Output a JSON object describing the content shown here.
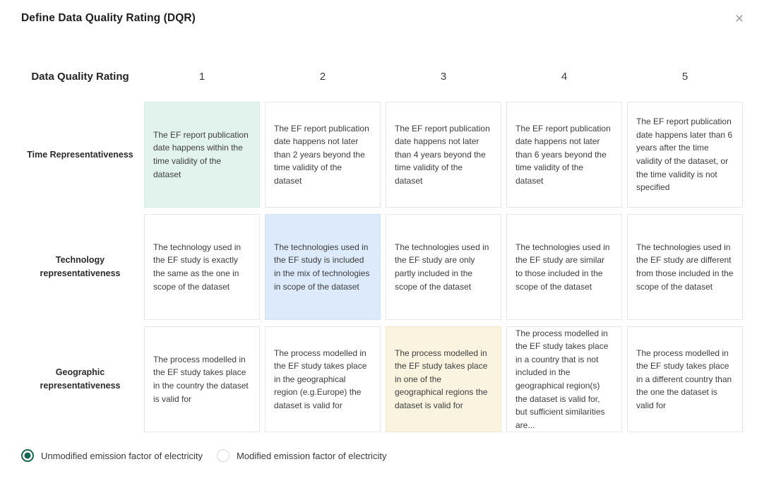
{
  "dialog": {
    "title": "Define Data Quality Rating (DQR)",
    "close_icon": "×"
  },
  "table": {
    "corner_header": "Data Quality Rating",
    "column_headers": [
      "1",
      "2",
      "3",
      "4",
      "5"
    ],
    "rows": [
      {
        "label": "Time Representativeness",
        "cells": [
          {
            "text": "The EF report publication date happens within the time validity of the dataset",
            "highlight": "green"
          },
          {
            "text": "The EF report publication date happens not later than 2 years beyond the time validity of the dataset",
            "highlight": "none"
          },
          {
            "text": "The EF report publication date happens not later than 4 years beyond the time validity of the dataset",
            "highlight": "none"
          },
          {
            "text": "The EF report publication date happens not later than 6 years beyond the time validity of the dataset",
            "highlight": "none"
          },
          {
            "text": "The EF report publication date happens later than 6 years after the time validity of the dataset, or the time validity is not specified",
            "highlight": "none"
          }
        ]
      },
      {
        "label": "Technology representativeness",
        "cells": [
          {
            "text": "The technology used in the EF study is exactly the same as the one in scope of the dataset",
            "highlight": "none"
          },
          {
            "text": "The technologies used in the EF study is included in the mix of technologies in scope of the dataset",
            "highlight": "blue"
          },
          {
            "text": "The technologies used in the EF study are only partly included in the scope of the dataset",
            "highlight": "none"
          },
          {
            "text": "The technologies used in the EF study are similar to those included in the scope of the dataset",
            "highlight": "none"
          },
          {
            "text": "The technologies used in the EF study are different from those included in the scope of the dataset",
            "highlight": "none"
          }
        ]
      },
      {
        "label": "Geographic representativeness",
        "cells": [
          {
            "text": "The process modelled in the EF study takes place in the country the dataset is valid for",
            "highlight": "none"
          },
          {
            "text": "The process modelled in the EF study takes place in the geographical region (e.g.Europe) the dataset is valid for",
            "highlight": "none"
          },
          {
            "text": "The process modelled in the EF study takes place in one of the geographical regions the dataset is valid for",
            "highlight": "yellow"
          },
          {
            "text": "The process modelled in the EF study takes place in a country that is not included in the geographical region(s) the dataset is valid for, but sufficient similarities are...",
            "highlight": "none"
          },
          {
            "text": "The process modelled in the EF study takes place in a different country than the one the dataset is valid for",
            "highlight": "none"
          }
        ]
      }
    ]
  },
  "radio_group": {
    "options": [
      {
        "label": "Unmodified emission factor of electricity",
        "selected": true
      },
      {
        "label": "Modified emission factor of electricity",
        "selected": false
      }
    ]
  },
  "colors": {
    "highlight_green": "#e1f3ec",
    "highlight_blue": "#dceafb",
    "highlight_yellow": "#faf3e0",
    "radio_selected": "#156553"
  }
}
